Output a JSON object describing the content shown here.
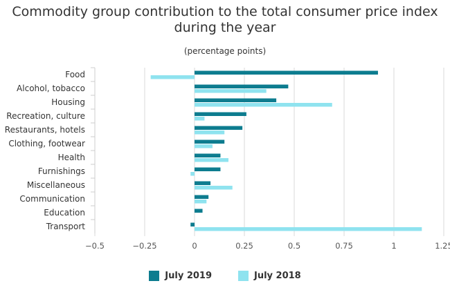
{
  "chart_data": {
    "type": "bar",
    "orientation": "horizontal",
    "title": "Commodity group contribution to the total consumer price index during the year",
    "subtitle": "(percentage points)",
    "categories": [
      "Food",
      "Alcohol, tobacco",
      "Housing",
      "Recreation, culture",
      "Restaurants, hotels",
      "Clothing, footwear",
      "Health",
      "Furnishings",
      "Miscellaneous",
      "Communication",
      "Education",
      "Transport"
    ],
    "series": [
      {
        "name": "July 2019",
        "color": "#0d7c8f",
        "values": [
          0.92,
          0.47,
          0.41,
          0.26,
          0.24,
          0.15,
          0.13,
          0.13,
          0.08,
          0.07,
          0.04,
          -0.02
        ]
      },
      {
        "name": "July 2018",
        "color": "#8fe3ef",
        "values": [
          -0.22,
          0.36,
          0.69,
          0.05,
          0.15,
          0.09,
          0.17,
          -0.02,
          0.19,
          0.06,
          0.0,
          1.14
        ]
      }
    ],
    "xlim": [
      -0.5,
      1.25
    ],
    "xticks": [
      -0.5,
      -0.25,
      0,
      0.25,
      0.5,
      0.75,
      1,
      1.25
    ],
    "xtick_labels": [
      "−0.5",
      "−0.25",
      "0",
      "0.25",
      "0.5",
      "0.75",
      "1",
      "1.25"
    ],
    "grid": true,
    "legend_position": "bottom"
  }
}
